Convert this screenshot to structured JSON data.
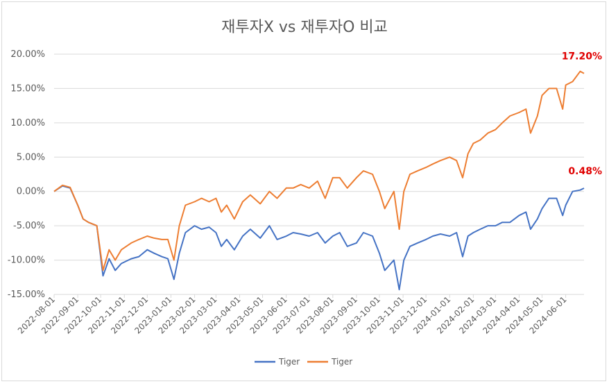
{
  "chart_data": {
    "type": "line",
    "title": "재투자X vs 재투자O 비교",
    "ylim": [
      -15,
      20
    ],
    "y_ticks": [
      "20.00%",
      "15.00%",
      "10.00%",
      "5.00%",
      "0.00%",
      "-5.00%",
      "-10.00%",
      "-15.00%"
    ],
    "y_tick_values": [
      20,
      15,
      10,
      5,
      0,
      -5,
      -10,
      -15
    ],
    "x_ticks": [
      "2022-08-01",
      "2022-09-01",
      "2022-10-01",
      "2022-11-01",
      "2022-12-01",
      "2023-01-01",
      "2023-02-01",
      "2023-03-01",
      "2023-04-01",
      "2023-05-01",
      "2023-06-01",
      "2023-07-01",
      "2023-08-01",
      "2023-09-01",
      "2023-10-01",
      "2023-11-01",
      "2023-12-01",
      "2024-01-01",
      "2024-02-01",
      "2024-03-01",
      "2024-04-01",
      "2024-05-01",
      "2024-06-01"
    ],
    "x_range": [
      "2022-08-01",
      "2024-06-25"
    ],
    "grid": true,
    "legend_position": "bottom",
    "series": [
      {
        "name": "Tiger",
        "color": "#4472C4",
        "end_label": "0.48%",
        "dates": [
          "2022-08-01",
          "2022-08-12",
          "2022-08-22",
          "2022-09-01",
          "2022-09-08",
          "2022-09-15",
          "2022-09-26",
          "2022-10-04",
          "2022-10-12",
          "2022-10-20",
          "2022-10-28",
          "2022-11-10",
          "2022-11-20",
          "2022-12-01",
          "2022-12-10",
          "2022-12-20",
          "2022-12-28",
          "2023-01-05",
          "2023-01-12",
          "2023-01-20",
          "2023-02-01",
          "2023-02-10",
          "2023-02-20",
          "2023-03-01",
          "2023-03-08",
          "2023-03-15",
          "2023-03-25",
          "2023-04-05",
          "2023-04-15",
          "2023-04-28",
          "2023-05-10",
          "2023-05-20",
          "2023-06-01",
          "2023-06-10",
          "2023-06-20",
          "2023-07-01",
          "2023-07-12",
          "2023-07-22",
          "2023-08-01",
          "2023-08-10",
          "2023-08-20",
          "2023-09-01",
          "2023-09-10",
          "2023-09-22",
          "2023-10-01",
          "2023-10-08",
          "2023-10-20",
          "2023-10-27",
          "2023-11-02",
          "2023-11-10",
          "2023-11-20",
          "2023-12-01",
          "2023-12-10",
          "2023-12-20",
          "2024-01-01",
          "2024-01-10",
          "2024-01-18",
          "2024-01-25",
          "2024-02-01",
          "2024-02-10",
          "2024-02-20",
          "2024-03-01",
          "2024-03-10",
          "2024-03-20",
          "2024-04-01",
          "2024-04-10",
          "2024-04-16",
          "2024-04-25",
          "2024-05-01",
          "2024-05-10",
          "2024-05-20",
          "2024-05-28",
          "2024-06-01",
          "2024-06-10",
          "2024-06-20",
          "2024-06-25"
        ],
        "values": [
          0.0,
          0.8,
          0.5,
          -2.0,
          -4.0,
          -4.5,
          -5.0,
          -12.3,
          -9.8,
          -11.5,
          -10.5,
          -9.8,
          -9.5,
          -8.5,
          -9.0,
          -9.5,
          -9.8,
          -12.8,
          -9.0,
          -6.0,
          -5.0,
          -5.5,
          -5.2,
          -6.0,
          -8.0,
          -7.0,
          -8.5,
          -6.5,
          -5.5,
          -6.8,
          -5.0,
          -7.0,
          -6.5,
          -6.0,
          -6.2,
          -6.5,
          -6.0,
          -7.5,
          -6.5,
          -6.0,
          -8.0,
          -7.5,
          -6.0,
          -6.5,
          -9.0,
          -11.5,
          -10.0,
          -14.3,
          -10.0,
          -8.0,
          -7.5,
          -7.0,
          -6.5,
          -6.2,
          -6.5,
          -6.0,
          -9.5,
          -6.5,
          -6.0,
          -5.5,
          -5.0,
          -5.0,
          -4.5,
          -4.5,
          -3.5,
          -3.0,
          -5.5,
          -4.0,
          -2.5,
          -1.0,
          -1.0,
          -3.5,
          -2.0,
          0.0,
          0.2,
          0.48
        ]
      },
      {
        "name": "Tiger",
        "color": "#ED7D31",
        "end_label": "17.20%",
        "dates": [
          "2022-08-01",
          "2022-08-12",
          "2022-08-22",
          "2022-09-01",
          "2022-09-08",
          "2022-09-15",
          "2022-09-26",
          "2022-10-04",
          "2022-10-12",
          "2022-10-20",
          "2022-10-28",
          "2022-11-10",
          "2022-11-20",
          "2022-12-01",
          "2022-12-10",
          "2022-12-20",
          "2022-12-28",
          "2023-01-05",
          "2023-01-12",
          "2023-01-20",
          "2023-02-01",
          "2023-02-10",
          "2023-02-20",
          "2023-03-01",
          "2023-03-08",
          "2023-03-15",
          "2023-03-25",
          "2023-04-05",
          "2023-04-15",
          "2023-04-28",
          "2023-05-10",
          "2023-05-20",
          "2023-06-01",
          "2023-06-10",
          "2023-06-20",
          "2023-07-01",
          "2023-07-12",
          "2023-07-22",
          "2023-08-01",
          "2023-08-10",
          "2023-08-20",
          "2023-09-01",
          "2023-09-10",
          "2023-09-22",
          "2023-10-01",
          "2023-10-08",
          "2023-10-20",
          "2023-10-27",
          "2023-11-02",
          "2023-11-10",
          "2023-11-20",
          "2023-12-01",
          "2023-12-10",
          "2023-12-20",
          "2024-01-01",
          "2024-01-10",
          "2024-01-18",
          "2024-01-25",
          "2024-02-01",
          "2024-02-10",
          "2024-02-20",
          "2024-03-01",
          "2024-03-10",
          "2024-03-20",
          "2024-04-01",
          "2024-04-10",
          "2024-04-16",
          "2024-04-25",
          "2024-05-01",
          "2024-05-10",
          "2024-05-20",
          "2024-05-28",
          "2024-06-01",
          "2024-06-10",
          "2024-06-20",
          "2024-06-25"
        ],
        "values": [
          0.0,
          0.9,
          0.6,
          -2.0,
          -4.0,
          -4.5,
          -5.0,
          -11.5,
          -8.5,
          -10.0,
          -8.5,
          -7.5,
          -7.0,
          -6.5,
          -6.8,
          -7.0,
          -7.0,
          -10.0,
          -5.0,
          -2.0,
          -1.5,
          -1.0,
          -1.5,
          -1.0,
          -3.0,
          -2.0,
          -4.0,
          -1.5,
          -0.5,
          -1.8,
          0.0,
          -1.0,
          0.5,
          0.5,
          1.0,
          0.5,
          1.5,
          -1.0,
          2.0,
          2.0,
          0.5,
          2.0,
          3.0,
          2.5,
          0.0,
          -2.5,
          0.0,
          -5.5,
          0.0,
          2.5,
          3.0,
          3.5,
          4.0,
          4.5,
          5.0,
          4.5,
          2.0,
          5.5,
          7.0,
          7.5,
          8.5,
          9.0,
          10.0,
          11.0,
          11.5,
          12.0,
          8.5,
          11.0,
          14.0,
          15.0,
          15.0,
          12.0,
          15.5,
          16.0,
          17.5,
          17.2
        ]
      }
    ]
  }
}
